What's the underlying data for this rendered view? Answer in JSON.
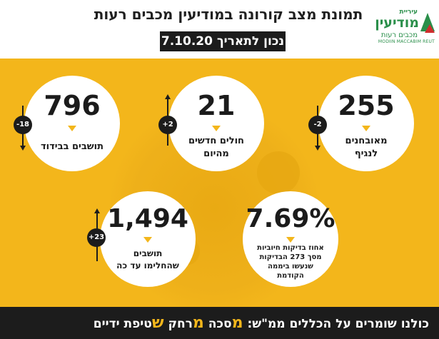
{
  "header": {
    "title": "תמונת מצב קורונה במודיעין מכבים רעות",
    "date": "נכון לתאריך 7.10.20"
  },
  "logo": {
    "top": "עיריית",
    "main": "מודיעין",
    "sub": "מכבים רעות",
    "english": "MODIIN MACCABIM REUT"
  },
  "stats": [
    {
      "value": "255",
      "label_line1": "מאובחנים",
      "label_line2": "לנגיף",
      "change": "-2",
      "direction": "down"
    },
    {
      "value": "21",
      "label_line1": "חולים חדשים",
      "label_line2": "מהיום",
      "change": "+2",
      "direction": "up"
    },
    {
      "value": "796",
      "label_line1": "תושבים בבידוד",
      "label_line2": "",
      "change": "-18",
      "direction": "down"
    },
    {
      "value": "7.69%",
      "label_line1": "אחוז בדיקות חיוביות",
      "label_line2": "מסך 273 הבדיקות",
      "label_line3": "שנעשו ביממה",
      "label_line4": "הקודמת"
    },
    {
      "value": "1,494",
      "label_line1": "תושבים",
      "label_line2": "שהחלימו עד כה",
      "change": "+23",
      "direction": "up"
    }
  ],
  "footer": {
    "prefix": "כולנו שומרים על הכללים ממ\"ש: ",
    "m1": "מ",
    "w1": "סכה ",
    "m2": "מ",
    "w2": "רחק ",
    "s1": "ש",
    "w3": "טיפת ידיים"
  },
  "colors": {
    "accent": "#f3b61b",
    "dark": "#1c1c1c"
  }
}
